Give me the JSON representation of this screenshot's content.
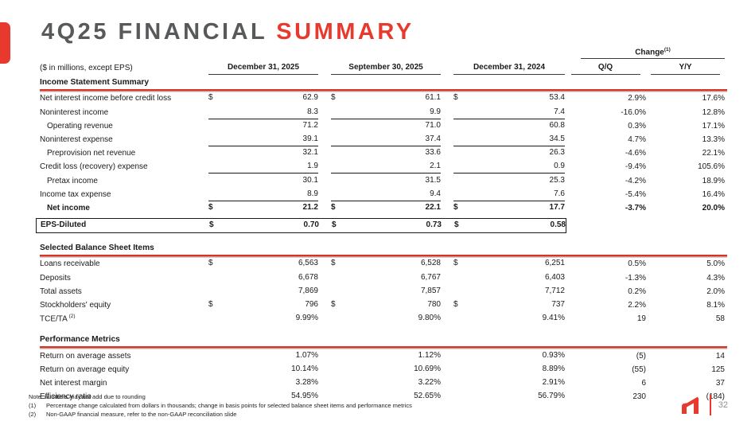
{
  "slide": {
    "title_gray": "4Q25 FINANCIAL",
    "title_red": "SUMMARY",
    "page_number": "32",
    "accent_red": "#e8392e"
  },
  "table": {
    "units_label": "($ in millions, except EPS)",
    "date_columns": [
      "December 31, 2025",
      "September 30, 2025",
      "December 31, 2024"
    ],
    "change": {
      "label": "Change",
      "sup": "(1)",
      "columns": [
        "Q/Q",
        "Y/Y"
      ]
    },
    "sections": [
      {
        "title": "Income Statement Summary",
        "rows": [
          {
            "label": "Net interest income before credit loss",
            "dollar": true,
            "values": [
              "62.9",
              "61.1",
              "53.4"
            ],
            "qq": "2.9%",
            "yy": "17.6%"
          },
          {
            "label": "Noninterest income",
            "values": [
              "8.3",
              "9.9",
              "7.4"
            ],
            "qq": "-16.0%",
            "yy": "12.8%",
            "underline": true
          },
          {
            "label": "Operating revenue",
            "indent": true,
            "values": [
              "71.2",
              "71.0",
              "60.8"
            ],
            "qq": "0.3%",
            "yy": "17.1%"
          },
          {
            "label": "Noninterest expense",
            "values": [
              "39.1",
              "37.4",
              "34.5"
            ],
            "qq": "4.7%",
            "yy": "13.3%",
            "underline": true
          },
          {
            "label": "Preprovision net revenue",
            "indent": true,
            "values": [
              "32.1",
              "33.6",
              "26.3"
            ],
            "qq": "-4.6%",
            "yy": "22.1%"
          },
          {
            "label": "Credit loss (recovery) expense",
            "values": [
              "1.9",
              "2.1",
              "0.9"
            ],
            "qq": "-9.4%",
            "yy": "105.6%",
            "underline": true
          },
          {
            "label": "Pretax income",
            "indent": true,
            "values": [
              "30.1",
              "31.5",
              "25.3"
            ],
            "qq": "-4.2%",
            "yy": "18.9%"
          },
          {
            "label": "Income tax expense",
            "values": [
              "8.9",
              "9.4",
              "7.6"
            ],
            "qq": "-5.4%",
            "yy": "16.4%",
            "underline": true
          },
          {
            "label": "Net income",
            "indent": true,
            "bold": true,
            "dollar": true,
            "values": [
              "21.2",
              "22.1",
              "17.7"
            ],
            "qq": "-3.7%",
            "yy": "20.0%"
          },
          {
            "label": "EPS-Diluted",
            "bold": true,
            "dollar": true,
            "values": [
              "0.70",
              "0.73",
              "0.58"
            ],
            "qq": "",
            "yy": "",
            "box": true
          }
        ]
      },
      {
        "title": "Selected Balance Sheet Items",
        "rows": [
          {
            "label": "Loans receivable",
            "dollar": true,
            "values": [
              "6,563",
              "6,528",
              "6,251"
            ],
            "qq": "0.5%",
            "yy": "5.0%"
          },
          {
            "label": "Deposits",
            "values": [
              "6,678",
              "6,767",
              "6,403"
            ],
            "qq": "-1.3%",
            "yy": "4.3%"
          },
          {
            "label": "Total assets",
            "values": [
              "7,869",
              "7,857",
              "7,712"
            ],
            "qq": "0.2%",
            "yy": "2.0%"
          },
          {
            "label": "Stockholders' equity",
            "dollar": true,
            "values": [
              "796",
              "780",
              "737"
            ],
            "qq": "2.2%",
            "yy": "8.1%"
          },
          {
            "label": "TCE/TA",
            "sup": "(2)",
            "values": [
              "9.99%",
              "9.80%",
              "9.41%"
            ],
            "qq": "19",
            "yy": "58"
          }
        ]
      },
      {
        "title": "Performance Metrics",
        "rows": [
          {
            "label": "Return on average assets",
            "values": [
              "1.07%",
              "1.12%",
              "0.93%"
            ],
            "qq": "(5)",
            "yy": "14"
          },
          {
            "label": "Return on average equity",
            "values": [
              "10.14%",
              "10.69%",
              "8.89%"
            ],
            "qq": "(55)",
            "yy": "125"
          },
          {
            "label": "Net interest margin",
            "values": [
              "3.28%",
              "3.22%",
              "2.91%"
            ],
            "qq": "6",
            "yy": "37"
          },
          {
            "label": "Efficiency ratio",
            "values": [
              "54.95%",
              "52.65%",
              "56.79%"
            ],
            "qq": "230",
            "yy": "(184)"
          }
        ]
      }
    ]
  },
  "footnotes": {
    "note": "Note: numbers may not add due to rounding",
    "items": [
      {
        "marker": "(1)",
        "text": "Percentage change calculated from dollars in thousands; change in basis points for selected balance sheet items and performance metrics"
      },
      {
        "marker": "(2)",
        "text": "Non-GAAP financial measure, refer to the non-GAAP reconciliation slide"
      }
    ]
  }
}
